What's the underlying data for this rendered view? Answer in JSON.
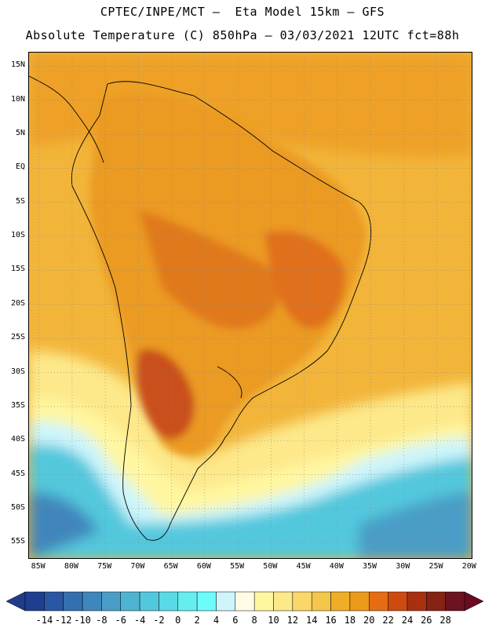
{
  "header": {
    "line1": "CPTEC/INPE/MCT –  Eta Model 15km – GFS",
    "line2": "Absolute Temperature (C) 850hPa – 03/03/2021 12UTC fct=88h"
  },
  "map": {
    "lat_labels": [
      "15N",
      "10N",
      "5N",
      "EQ",
      "5S",
      "10S",
      "15S",
      "20S",
      "25S",
      "30S",
      "35S",
      "40S",
      "45S",
      "50S",
      "55S"
    ],
    "lon_labels": [
      "85W",
      "80W",
      "75W",
      "70W",
      "65W",
      "60W",
      "55W",
      "50W",
      "45W",
      "40W",
      "35W",
      "30W",
      "25W",
      "20W"
    ],
    "lat_range": [
      15,
      -55
    ],
    "lon_range": [
      -85,
      -20
    ]
  },
  "colorbar": {
    "labels": [
      "-14",
      "-12",
      "-10",
      "-8",
      "-6",
      "-4",
      "-2",
      "0",
      "2",
      "4",
      "6",
      "8",
      "10",
      "12",
      "14",
      "16",
      "18",
      "20",
      "22",
      "24",
      "26",
      "28"
    ],
    "colors": [
      "#1f3e8e",
      "#2a57a2",
      "#3470b0",
      "#3f86bc",
      "#4a9dc6",
      "#4fb4d2",
      "#52c8dd",
      "#58dbe6",
      "#64eef0",
      "#6cfcfb",
      "#cdf5fb",
      "#fffbe6",
      "#fff7a0",
      "#fde88a",
      "#fbd769",
      "#f4c64a",
      "#f0ae26",
      "#ec9a1c",
      "#e66c13",
      "#cf4a10",
      "#a8300e",
      "#862312",
      "#6b1320"
    ],
    "left_arrow_color": "#1f3c8a",
    "right_arrow_color": "#6b0a20"
  },
  "icons": {
    "left_arrow": "triangle-left-icon",
    "right_arrow": "triangle-right-icon"
  }
}
